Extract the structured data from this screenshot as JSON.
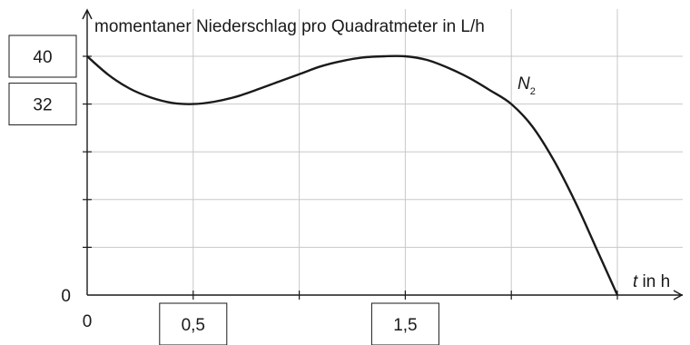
{
  "chart_data": {
    "type": "line",
    "ylabel": "momentaner Niederschlag pro Quadratmeter in L/h",
    "xlabel_italic": "t",
    "xlabel_rest": " in h",
    "xlim": [
      0,
      2.5
    ],
    "ylim": [
      0,
      40
    ],
    "x_gridlines": [
      0.5,
      1,
      1.5,
      2,
      2.5
    ],
    "y_gridlines": [
      8,
      16,
      24,
      32,
      40
    ],
    "origin_x_label": "0",
    "origin_y_label": "0",
    "boxed_x_labels": [
      {
        "value": 0.5,
        "text": "0,5"
      },
      {
        "value": 1.5,
        "text": "1,5"
      }
    ],
    "boxed_y_labels": [
      {
        "value": 40,
        "text": "40"
      },
      {
        "value": 32,
        "text": "32"
      }
    ],
    "series": [
      {
        "name": "N",
        "name_subscript": "2",
        "x": [
          0,
          0.1,
          0.2,
          0.3,
          0.4,
          0.5,
          0.6,
          0.7,
          0.8,
          0.9,
          1.0,
          1.1,
          1.2,
          1.3,
          1.4,
          1.5,
          1.6,
          1.7,
          1.8,
          1.9,
          2.0,
          2.1,
          2.2,
          2.3,
          2.4,
          2.5
        ],
        "y": [
          40,
          36.9,
          34.6,
          33.1,
          32.2,
          32,
          32.4,
          33.2,
          34.4,
          35.7,
          37,
          38.3,
          39.2,
          39.8,
          40,
          40,
          39.4,
          38.1,
          36.4,
          34.3,
          32,
          28.2,
          22.6,
          15.7,
          7.9,
          0
        ]
      }
    ]
  }
}
